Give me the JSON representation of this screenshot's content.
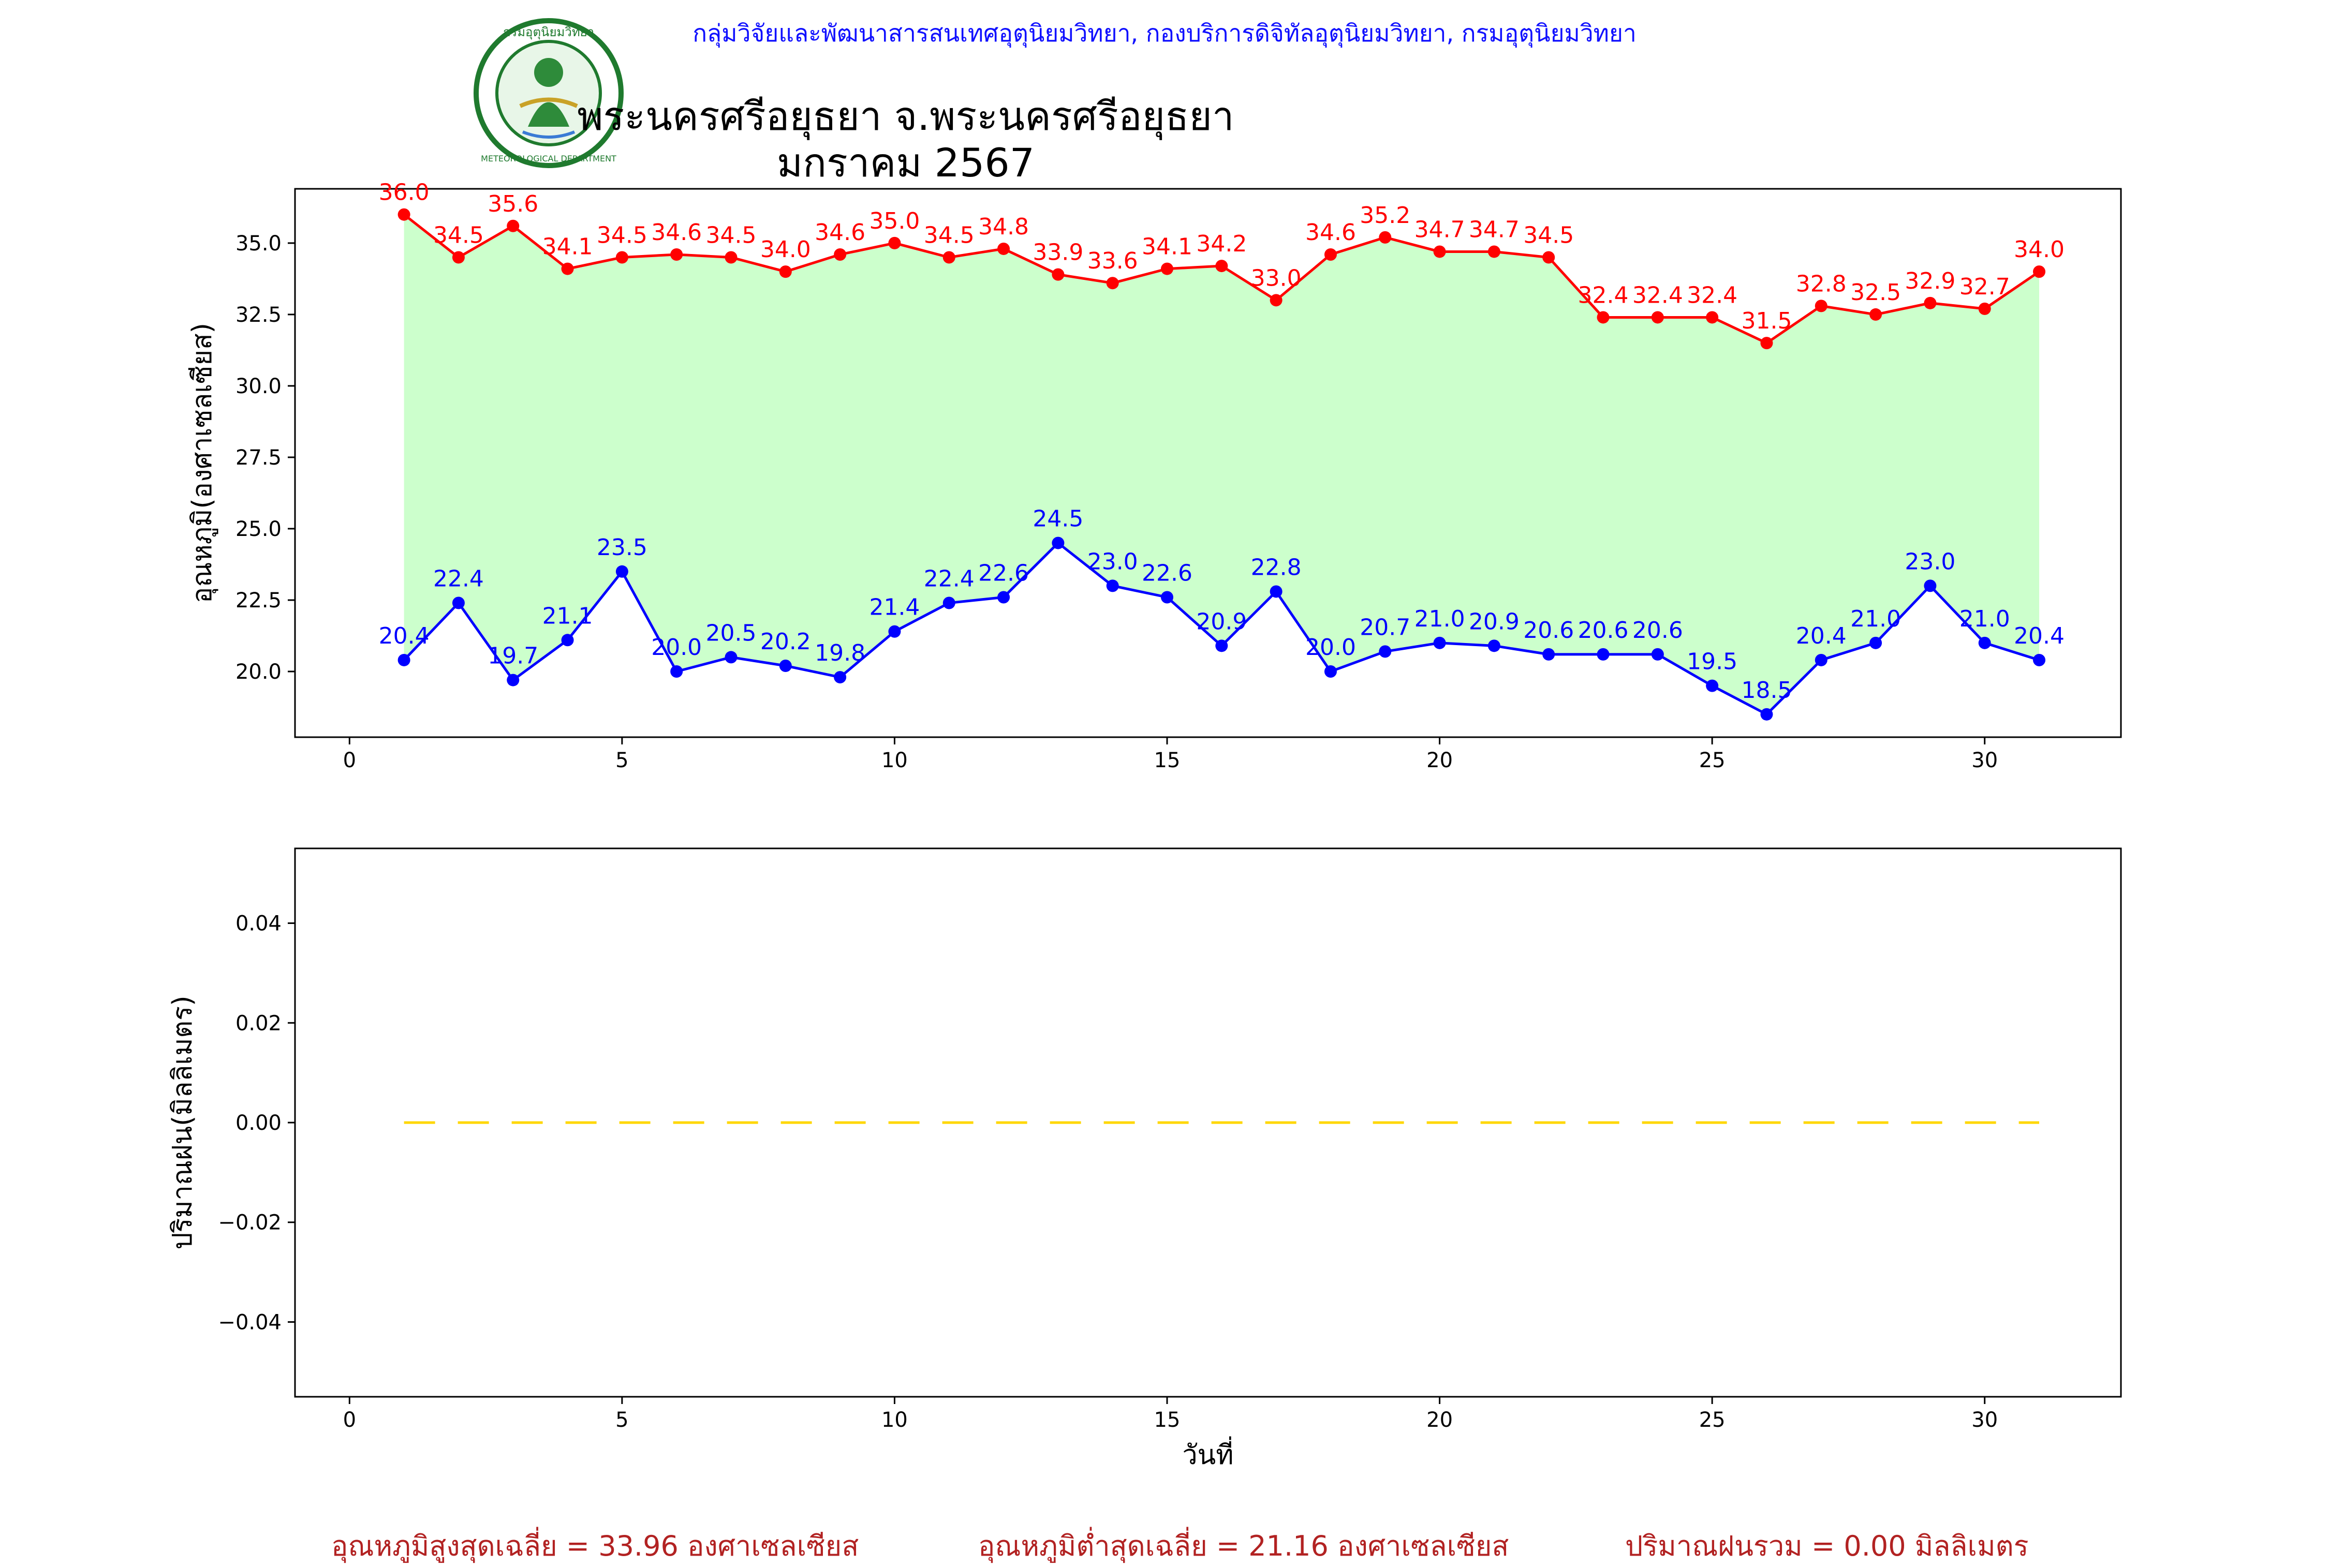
{
  "header": {
    "credit": "กลุ่มวิจัยและพัฒนาสารสนเทศอุตุนิยมวิทยา, กองบริการดิจิทัลอุตุนิยมวิทยา, กรมอุตุนิยมวิทยา",
    "title_line1": "พระนครศรีอยุธยา จ.พระนครศรีอยุธยา",
    "title_line2": "มกราคม 2567",
    "logo_text": "กรมอุตุนิยมวิทยา",
    "logo_text_en": "METEOROLOGICAL DEPARTMENT"
  },
  "colors": {
    "max": "#ff0000",
    "min": "#0000ff",
    "fill": "#ccffcc",
    "rain": "#ffd700",
    "footer": "#b22222",
    "credit": "#1010ff"
  },
  "chart_data": [
    {
      "type": "line",
      "ylabel": "อุณหภูมิ(องศาเซลเซียส)",
      "xlabel": "",
      "x": [
        1,
        2,
        3,
        4,
        5,
        6,
        7,
        8,
        9,
        10,
        11,
        12,
        13,
        14,
        15,
        16,
        17,
        18,
        19,
        20,
        21,
        22,
        23,
        24,
        25,
        26,
        27,
        28,
        29,
        30,
        31
      ],
      "series": [
        {
          "values": [
            36.0,
            34.5,
            35.6,
            34.1,
            34.5,
            34.6,
            34.5,
            34.0,
            34.6,
            35.0,
            34.5,
            34.8,
            33.9,
            33.6,
            34.1,
            34.2,
            33.0,
            34.6,
            35.2,
            34.7,
            34.7,
            34.5,
            32.4,
            32.4,
            32.4,
            31.5,
            32.8,
            32.5,
            32.9,
            32.7,
            34.0
          ]
        },
        {
          "values": [
            20.4,
            22.4,
            19.7,
            21.1,
            23.5,
            20.0,
            20.5,
            20.2,
            19.8,
            21.4,
            22.4,
            22.6,
            24.5,
            23.0,
            22.6,
            20.9,
            22.8,
            20.0,
            20.7,
            21.0,
            20.9,
            20.6,
            20.6,
            20.6,
            19.5,
            18.5,
            20.4,
            21.0,
            23.0,
            21.0,
            20.4
          ]
        }
      ],
      "xlim": [
        -1,
        32.5
      ],
      "ylim": [
        17.7,
        36.9
      ],
      "xticks": [
        0,
        5,
        10,
        15,
        20,
        25,
        30
      ],
      "yticks": [
        "20.0",
        "22.5",
        "25.0",
        "27.5",
        "30.0",
        "32.5",
        "35.0"
      ],
      "fill_between": true
    },
    {
      "type": "line",
      "ylabel": "ปริมาณฝน(มิลลิเมตร)",
      "xlabel": "วันที่",
      "x": [
        1,
        2,
        3,
        4,
        5,
        6,
        7,
        8,
        9,
        10,
        11,
        12,
        13,
        14,
        15,
        16,
        17,
        18,
        19,
        20,
        21,
        22,
        23,
        24,
        25,
        26,
        27,
        28,
        29,
        30,
        31
      ],
      "series": [
        {
          "values": [
            0,
            0,
            0,
            0,
            0,
            0,
            0,
            0,
            0,
            0,
            0,
            0,
            0,
            0,
            0,
            0,
            0,
            0,
            0,
            0,
            0,
            0,
            0,
            0,
            0,
            0,
            0,
            0,
            0,
            0,
            0
          ],
          "style": "dashed"
        }
      ],
      "xlim": [
        -1,
        32.5
      ],
      "ylim": [
        -0.055,
        0.055
      ],
      "xticks": [
        0,
        5,
        10,
        15,
        20,
        25,
        30
      ],
      "yticks": [
        "−0.04",
        "−0.02",
        "0.00",
        "0.02",
        "0.04"
      ]
    }
  ],
  "footer": {
    "avg_max": "อุณหภูมิสูงสุดเฉลี่ย = 33.96 องศาเซลเซียส",
    "avg_min": "อุณหภูมิต่ำสุดเฉลี่ย = 21.16 องศาเซลเซียส",
    "total_rain": "ปริมาณฝนรวม = 0.00 มิลลิเมตร"
  }
}
